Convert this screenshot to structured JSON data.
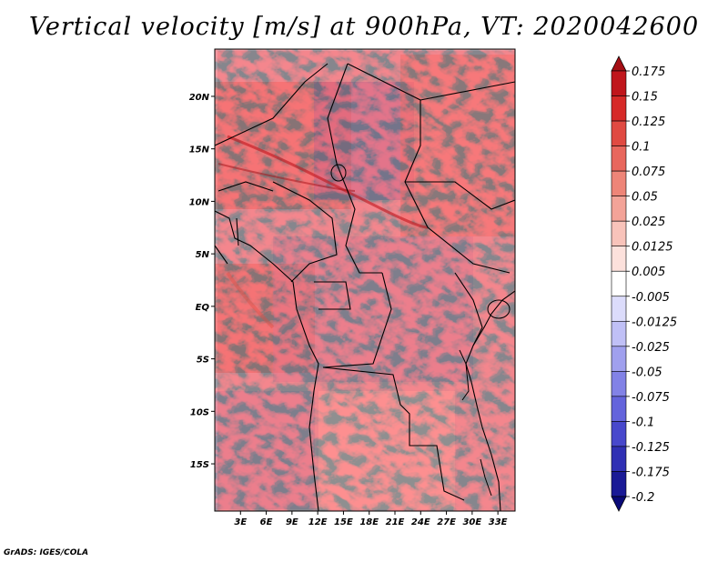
{
  "title": "Vertical velocity [m/s] at 900hPa, VT: 2020042600",
  "credit": "GrADS: IGES/COLA",
  "map": {
    "lon_range": [
      0,
      35
    ],
    "lat_range": [
      -19.5,
      24.5
    ],
    "lon_ticks": [
      "3E",
      "6E",
      "9E",
      "12E",
      "15E",
      "18E",
      "21E",
      "24E",
      "27E",
      "30E",
      "33E"
    ],
    "lon_tick_values": [
      3,
      6,
      9,
      12,
      15,
      18,
      21,
      24,
      27,
      30,
      33
    ],
    "lat_ticks": [
      "20N",
      "15N",
      "10N",
      "5N",
      "EQ",
      "5S",
      "10S",
      "15S"
    ],
    "lat_tick_values": [
      20,
      15,
      10,
      5,
      0,
      -5,
      -10,
      -15
    ]
  },
  "colorbar": {
    "labels": [
      "0.175",
      "0.15",
      "0.125",
      "0.1",
      "0.075",
      "0.05",
      "0.025",
      "0.0125",
      "0.005",
      "-0.005",
      "-0.0125",
      "-0.025",
      "-0.05",
      "-0.075",
      "-0.1",
      "-0.125",
      "-0.175",
      "-0.2"
    ],
    "colors": [
      "#a50f15",
      "#c0161c",
      "#d62a28",
      "#e04a42",
      "#e8675d",
      "#ee8578",
      "#f3a398",
      "#f8c3ba",
      "#fce1dc",
      "#ffffff",
      "#dcdcfb",
      "#c0c0f6",
      "#a0a0ee",
      "#8282e6",
      "#6464dc",
      "#4848cc",
      "#3030b4",
      "#1a1a96",
      "#0a0a78"
    ]
  }
}
